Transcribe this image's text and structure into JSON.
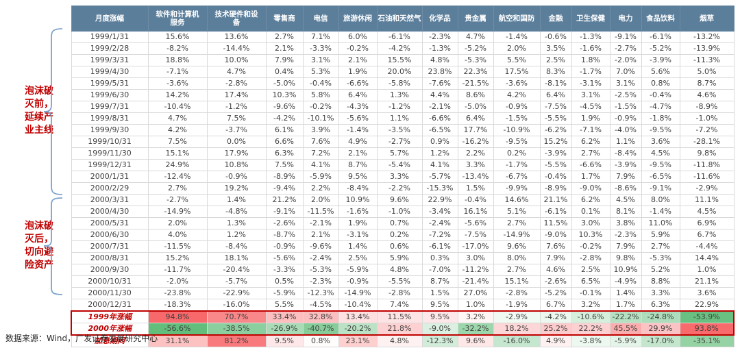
{
  "source": "数据来源：Wind，广发证券发展研究中心",
  "annotations": [
    {
      "text": "泡沫破\n灭前，\n延续产\n业主线"
    },
    {
      "text": "泡沫破\n灭后，\n切向避\n险资产"
    }
  ],
  "colors": {
    "header_bg": "#5b7e9b",
    "positive_max": "#f8696b",
    "negative_max": "#63be7b",
    "accent_red": "#c00000",
    "brace_blue": "#7ba3cc",
    "grid": "#d9d9d9"
  },
  "chart_data": {
    "type": "table",
    "subtype": "heatmap",
    "columns": [
      "月度涨幅",
      "软件和计算机\n服务",
      "技术硬件和设\n备",
      "零售商",
      "电信",
      "旅游休闲",
      "石油和天然气",
      "化学品",
      "贵金属",
      "航空和国防",
      "金融",
      "卫生保健",
      "电力",
      "食品饮料",
      "烟草"
    ],
    "value_format": "percent_one_decimal",
    "rows": [
      {
        "label": "1999/1/31",
        "values": [
          15.6,
          13.6,
          2.7,
          7.1,
          6.0,
          -6.1,
          -2.3,
          4.7,
          -1.4,
          -0.6,
          -1.3,
          -9.1,
          -6.1,
          -13.2
        ]
      },
      {
        "label": "1999/2/28",
        "values": [
          -8.2,
          -14.4,
          2.1,
          -3.3,
          -0.2,
          -4.2,
          -1.3,
          -5.2,
          2.0,
          3.5,
          -1.6,
          -2.7,
          -5.2,
          -13.9
        ]
      },
      {
        "label": "1999/3/31",
        "values": [
          18.8,
          10.0,
          7.9,
          3.1,
          2.1,
          15.5,
          4.8,
          -5.3,
          5.5,
          2.5,
          1.8,
          -2.0,
          -3.9,
          -11.3
        ]
      },
      {
        "label": "1999/4/30",
        "values": [
          -7.1,
          4.7,
          0.4,
          5.3,
          1.9,
          20.0,
          23.8,
          22.3,
          17.5,
          8.3,
          -1.7,
          7.0,
          5.6,
          5.0
        ]
      },
      {
        "label": "1999/5/31",
        "values": [
          -3.6,
          -2.8,
          -5.0,
          -0.4,
          -6.6,
          -5.8,
          -7.6,
          -21.5,
          -3.6,
          -8.1,
          -3.1,
          3.1,
          0.8,
          8.7
        ]
      },
      {
        "label": "1999/6/30",
        "values": [
          14.2,
          17.4,
          10.3,
          5.8,
          6.4,
          1.3,
          4.4,
          8.6,
          4.2,
          6.4,
          3.1,
          -2.5,
          -0.4,
          4.6
        ]
      },
      {
        "label": "1999/7/31",
        "values": [
          -10.4,
          -1.2,
          -9.6,
          -0.2,
          -4.3,
          -1.2,
          -2.1,
          -5.0,
          -0.9,
          -7.5,
          -4.5,
          -1.5,
          -4.7,
          -8.9
        ]
      },
      {
        "label": "1999/8/31",
        "values": [
          4.7,
          7.5,
          -4.2,
          -10.1,
          -5.6,
          1.1,
          -6.6,
          6.4,
          -1.5,
          -5.5,
          1.9,
          -0.9,
          -1.8,
          -1.0
        ]
      },
      {
        "label": "1999/9/30",
        "values": [
          4.2,
          -3.7,
          6.1,
          3.9,
          -1.4,
          -3.5,
          -6.5,
          17.7,
          -10.9,
          -6.2,
          -7.1,
          -4.0,
          -9.5,
          -7.2
        ]
      },
      {
        "label": "1999/10/31",
        "values": [
          7.5,
          0.0,
          6.6,
          7.6,
          4.9,
          -2.7,
          0.9,
          -16.2,
          -9.5,
          15.2,
          6.2,
          1.1,
          3.6,
          -28.1
        ]
      },
      {
        "label": "1999/11/30",
        "values": [
          15.1,
          17.9,
          6.3,
          7.2,
          2.1,
          5.7,
          1.2,
          2.2,
          0.2,
          -3.9,
          2.7,
          -8.4,
          4.5,
          9.8
        ]
      },
      {
        "label": "1999/12/31",
        "values": [
          24.9,
          10.8,
          7.5,
          4.1,
          8.7,
          -5.4,
          4.1,
          3.3,
          -1.7,
          -5.5,
          -6.6,
          -3.9,
          -9.5,
          -11.8
        ]
      },
      {
        "label": "2000/1/31",
        "values": [
          -12.4,
          -0.9,
          -8.9,
          -5.9,
          9.5,
          3.3,
          -5.7,
          -13.4,
          -6.7,
          -0.4,
          1.7,
          7.9,
          -6.5,
          -11.6
        ]
      },
      {
        "label": "2000/2/29",
        "values": [
          2.7,
          19.2,
          -9.4,
          2.2,
          -8.4,
          -2.2,
          -15.3,
          1.5,
          -9.9,
          -8.9,
          -9.0,
          -8.6,
          -9.1,
          -2.9
        ]
      },
      {
        "label": "2000/3/31",
        "values": [
          -2.7,
          1.4,
          21.2,
          2.0,
          10.9,
          9.6,
          22.9,
          -0.4,
          14.6,
          21.1,
          6.2,
          4.5,
          8.0,
          11.1
        ]
      },
      {
        "label": "2000/4/30",
        "values": [
          -14.9,
          -4.8,
          -9.1,
          -11.5,
          -1.6,
          -1.0,
          -3.4,
          16.1,
          5.1,
          -6.1,
          0.1,
          8.1,
          -1.4,
          4.5
        ]
      },
      {
        "label": "2000/5/31",
        "values": [
          2.0,
          1.3,
          -2.6,
          -2.1,
          1.9,
          0.7,
          -2.4,
          -5.6,
          2.7,
          11.5,
          3.0,
          3.8,
          11.0,
          6.9
        ]
      },
      {
        "label": "2000/6/30",
        "values": [
          4.0,
          1.2,
          -8.7,
          2.1,
          -3.1,
          0.2,
          -7.2,
          -7.5,
          -14.9,
          -9.0,
          10.3,
          -2.3,
          5.9,
          6.7
        ]
      },
      {
        "label": "2000/7/31",
        "values": [
          -11.5,
          -8.4,
          -0.9,
          -9.6,
          1.4,
          0.6,
          -6.1,
          -17.0,
          9.6,
          7.6,
          -0.2,
          7.9,
          2.7,
          -4.4
        ]
      },
      {
        "label": "2000/8/31",
        "values": [
          15.2,
          18.1,
          -5.6,
          -2.4,
          2.5,
          5.9,
          0.3,
          3.0,
          8.0,
          7.9,
          -2.8,
          9.8,
          -5.3,
          14.4
        ]
      },
      {
        "label": "2000/9/30",
        "values": [
          -11.7,
          -20.4,
          -3.3,
          -5.3,
          -5.9,
          4.8,
          -7.0,
          -11.2,
          2.7,
          4.6,
          2.5,
          10.9,
          5.2,
          1.0
        ]
      },
      {
        "label": "2000/10/31",
        "values": [
          -2.0,
          -5.7,
          0.5,
          -2.3,
          -0.9,
          -5.5,
          8.7,
          -21.4,
          15.1,
          -2.6,
          6.5,
          -4.9,
          8.8,
          21.1
        ]
      },
      {
        "label": "2000/11/30",
        "values": [
          -23.8,
          -22.9,
          -5.9,
          -12.3,
          -14.9,
          -2.8,
          1.5,
          27.0,
          -2.8,
          -5.2,
          -0.1,
          1.4,
          3.3,
          3.6
        ]
      },
      {
        "label": "2000/12/31",
        "values": [
          -18.3,
          -16.0,
          5.5,
          -4.5,
          -10.4,
          7.4,
          9.5,
          1.0,
          -1.9,
          6.7,
          3.2,
          1.7,
          6.3,
          22.9
        ]
      }
    ],
    "summary_rows": [
      {
        "label": "1999年涨幅",
        "values": [
          94.8,
          70.7,
          33.4,
          32.8,
          13.4,
          11.5,
          9.5,
          3.2,
          -2.9,
          -4.2,
          -10.6,
          -22.2,
          -24.8,
          -53.9
        ]
      },
      {
        "label": "2000年涨幅",
        "values": [
          -56.6,
          -38.5,
          -26.9,
          -40.7,
          -20.2,
          21.8,
          -9.0,
          -32.2,
          18.2,
          25.2,
          22.2,
          45.5,
          29.9,
          93.8
        ]
      },
      {
        "label": "加息期间",
        "values": [
          31.1,
          81.2,
          9.5,
          0.8,
          23.1,
          4.8,
          -12.3,
          9.6,
          -16.0,
          4.9,
          -3.8,
          -5.9,
          -17.0,
          -35.1
        ]
      }
    ],
    "color_scale": {
      "max_positive": 94.8,
      "max_negative": -56.6
    },
    "legend": "red = positive monthly/period return, green = negative; heat applied to summary rows only",
    "highlight_box_rows": [
      "1999年涨幅",
      "2000年涨幅"
    ]
  }
}
